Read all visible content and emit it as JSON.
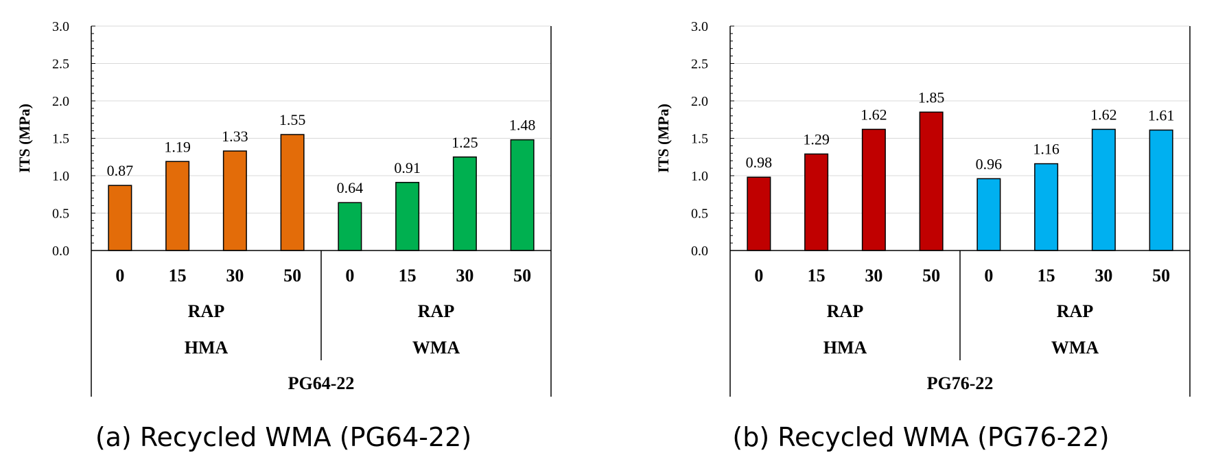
{
  "chart_data": [
    {
      "type": "bar",
      "caption": "(a) Recycled WMA (PG64-22)",
      "ylabel": "ITS  (MPa)",
      "ylim": [
        0,
        3.0
      ],
      "yticks": [
        "0.0",
        "0.5",
        "1.0",
        "1.5",
        "2.0",
        "2.5",
        "3.0"
      ],
      "grid": true,
      "outer_label": "PG64-22",
      "groups": [
        {
          "mix": "HMA",
          "rap_label": "RAP",
          "color": "#E36C09",
          "categories": [
            "0",
            "15",
            "30",
            "50"
          ],
          "values": [
            0.87,
            1.19,
            1.33,
            1.55
          ],
          "labels": [
            "0.87",
            "1.19",
            "1.33",
            "1.55"
          ]
        },
        {
          "mix": "WMA",
          "rap_label": "RAP",
          "color": "#00B050",
          "categories": [
            "0",
            "15",
            "30",
            "50"
          ],
          "values": [
            0.64,
            0.91,
            1.25,
            1.48
          ],
          "labels": [
            "0.64",
            "0.91",
            "1.25",
            "1.48"
          ]
        }
      ]
    },
    {
      "type": "bar",
      "caption": "(b) Recycled WMA (PG76-22)",
      "ylabel": "ITS  (MPa)",
      "ylim": [
        0,
        3.0
      ],
      "yticks": [
        "0.0",
        "0.5",
        "1.0",
        "1.5",
        "2.0",
        "2.5",
        "3.0"
      ],
      "grid": true,
      "outer_label": "PG76-22",
      "groups": [
        {
          "mix": "HMA",
          "rap_label": "RAP",
          "color": "#C00000",
          "categories": [
            "0",
            "15",
            "30",
            "50"
          ],
          "values": [
            0.98,
            1.29,
            1.62,
            1.85
          ],
          "labels": [
            "0.98",
            "1.29",
            "1.62",
            "1.85"
          ]
        },
        {
          "mix": "WMA",
          "rap_label": "RAP",
          "color": "#00B0F0",
          "categories": [
            "0",
            "15",
            "30",
            "50"
          ],
          "values": [
            0.96,
            1.16,
            1.62,
            1.61
          ],
          "labels": [
            "0.96",
            "1.16",
            "1.62",
            "1.61"
          ]
        }
      ]
    }
  ]
}
